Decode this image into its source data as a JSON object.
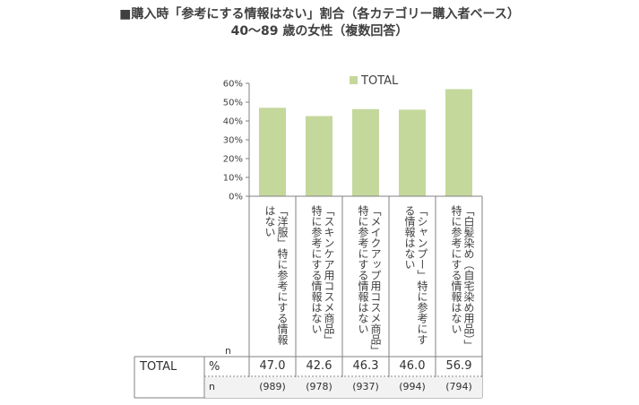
{
  "title_line1": "■購入時「参考にする情報はない」割合（各カテゴリー購入者ベース）",
  "title_line2": "40〜89 歳の女性（複数回答）",
  "chart_data": {
    "type": "bar",
    "categories": [
      "「洋服」特に参考にする情報はない",
      "「スキンケア用コスメ商品」特に参考にする情報はない",
      "「メイクアップ用コスメ商品」特に参考にする情報はない",
      "「シャンプー」特に参考にする情報はない",
      "「白髪染め（自宅染め用品）」特に参考にする情報はない"
    ],
    "series": [
      {
        "name": "TOTAL",
        "values": [
          47.0,
          42.6,
          46.3,
          46.0,
          56.9
        ]
      }
    ],
    "ylim": [
      0,
      60
    ],
    "yticks": [
      "0%",
      "10%",
      "20%",
      "30%",
      "40%",
      "50%",
      "60%"
    ],
    "legend": "top",
    "bar_color": "#c4d89c"
  },
  "table": {
    "n_header": "n",
    "row_label": "TOTAL",
    "pct_label": "%",
    "n_label": "n",
    "pct_values": [
      "47.0",
      "42.6",
      "46.3",
      "46.0",
      "56.9"
    ],
    "n_values": [
      "(989)",
      "(978)",
      "(937)",
      "(994)",
      "(794)"
    ]
  }
}
